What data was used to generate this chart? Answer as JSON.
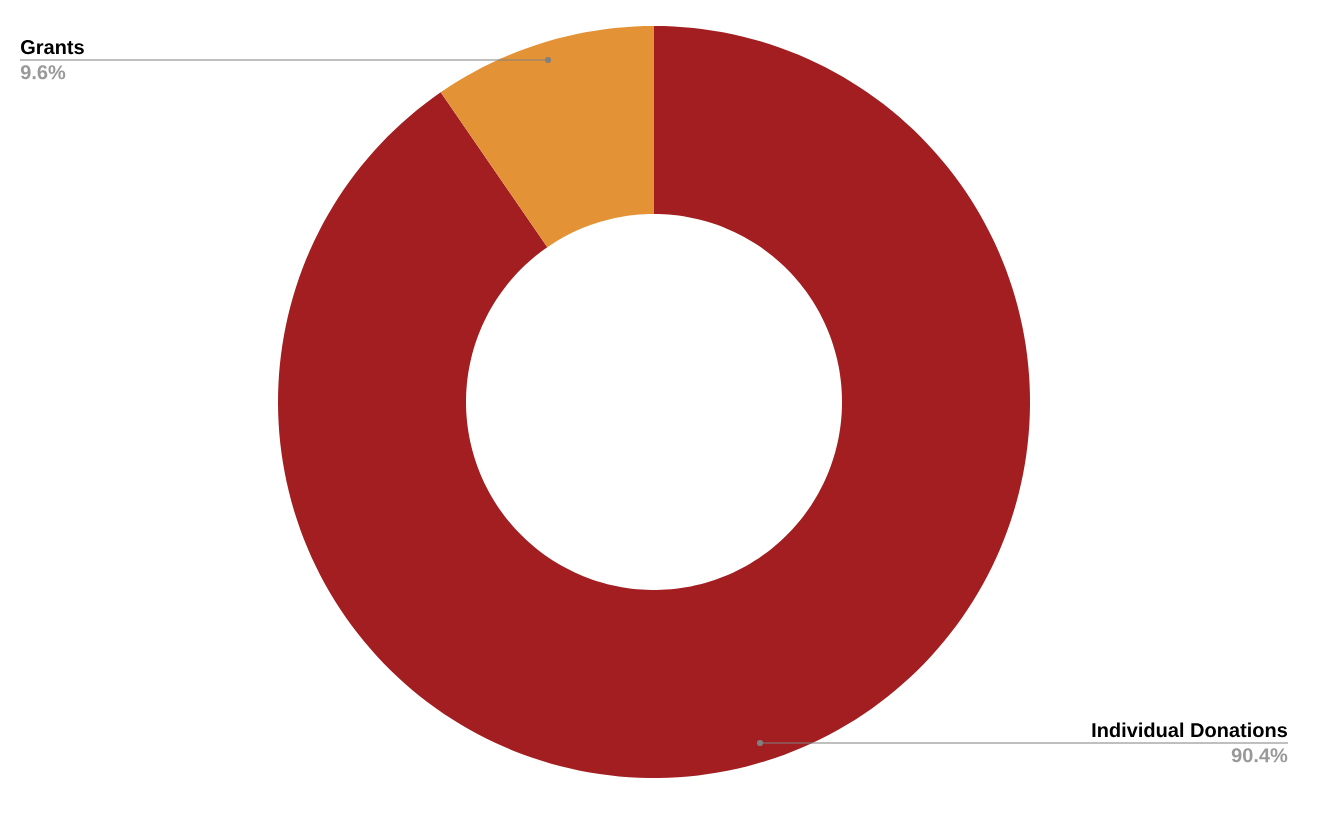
{
  "chart_data": {
    "type": "donut",
    "categories": [
      "Individual Donations",
      "Grants"
    ],
    "values": [
      90.4,
      9.6
    ],
    "value_labels": [
      "90.4%",
      "9.6%"
    ],
    "colors": [
      "#a21e21",
      "#e39335"
    ]
  }
}
